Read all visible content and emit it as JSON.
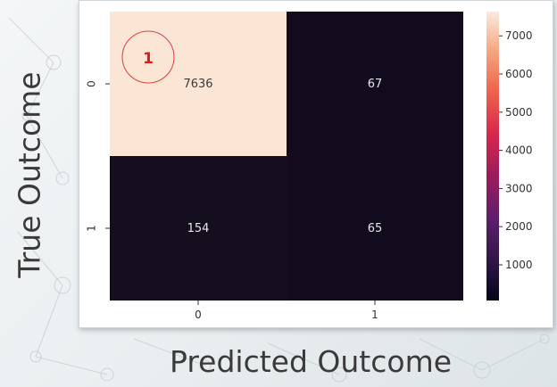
{
  "chart_data": {
    "type": "heatmap",
    "title": "",
    "xlabel": "Predicted Outcome",
    "ylabel": "True Outcome",
    "x_categories": [
      "0",
      "1"
    ],
    "y_categories": [
      "0",
      "1"
    ],
    "matrix": [
      [
        7636,
        67
      ],
      [
        154,
        65
      ]
    ],
    "colorbar": {
      "ticks": [
        "7000",
        "6000",
        "5000",
        "4000",
        "3000",
        "2000",
        "1000"
      ],
      "range": [
        65,
        7636
      ]
    },
    "annotation": "1"
  },
  "colors": {
    "high": "#fbe6d6",
    "low": "#110b1d",
    "annotation_ring": "#e0403b",
    "annotation_text": "#e01b1b"
  }
}
